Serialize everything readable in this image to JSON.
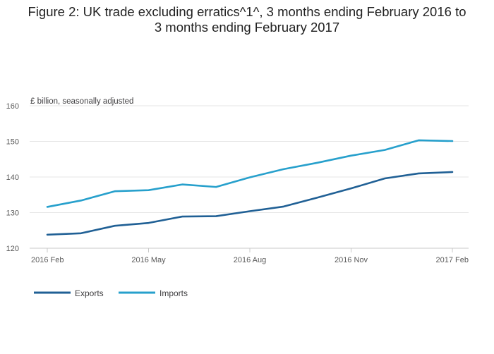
{
  "chart_data": {
    "type": "line",
    "title_line1": "Figure 2: UK trade excluding erratics^1^, 3 months ending February 2016 to",
    "title_line2": "3 months ending February 2017",
    "ylabel": "£ billion, seasonally adjusted",
    "xlabel": "",
    "ylim": [
      120,
      160
    ],
    "y_ticks": [
      120,
      130,
      140,
      150,
      160
    ],
    "y_tick_labels": [
      "120",
      "130",
      "140",
      "150",
      "160"
    ],
    "x_tick_labels": [
      "2016 Feb",
      "2016 May",
      "2016 Aug",
      "2016 Nov",
      "2017 Feb"
    ],
    "x_tick_indices": [
      0,
      3,
      6,
      9,
      12
    ],
    "categories": [
      "2016 Feb",
      "2016 Mar",
      "2016 Apr",
      "2016 May",
      "2016 Jun",
      "2016 Jul",
      "2016 Aug",
      "2016 Sep",
      "2016 Oct",
      "2016 Nov",
      "2016 Dec",
      "2017 Jan",
      "2017 Feb"
    ],
    "grid": true,
    "legend_position": "bottom-left",
    "series": [
      {
        "name": "Exports",
        "color": "#206095",
        "values": [
          123.8,
          124.2,
          126.3,
          127.1,
          128.9,
          129.0,
          130.4,
          131.7,
          134.2,
          136.8,
          139.6,
          141.0,
          141.4
        ]
      },
      {
        "name": "Imports",
        "color": "#27a0cc",
        "values": [
          131.6,
          133.4,
          136.0,
          136.3,
          137.9,
          137.2,
          139.9,
          142.2,
          144.0,
          146.0,
          147.6,
          150.3,
          150.1
        ]
      }
    ]
  }
}
